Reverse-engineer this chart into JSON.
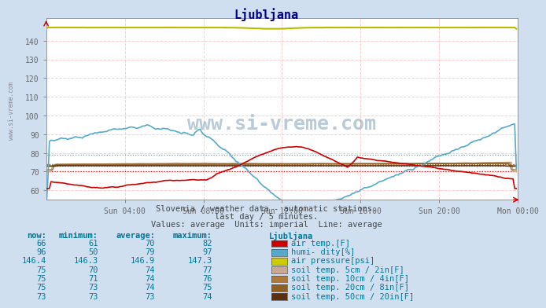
{
  "title": "Ljubljana",
  "background_color": "#d0dff0",
  "plot_bg_color": "#ffffff",
  "grid_color_h": "#ffbbbb",
  "grid_color_v": "#ffcccc",
  "x_ticks_labels": [
    "Sun 04:00",
    "Sun 08:00",
    "Sun 12:00",
    "Sun 16:00",
    "Sun 20:00",
    "Mon 00:00"
  ],
  "x_ticks_pos": [
    48,
    96,
    144,
    192,
    240,
    288
  ],
  "ylim": [
    55,
    152
  ],
  "yticks": [
    60,
    70,
    80,
    90,
    100,
    110,
    120,
    130,
    140
  ],
  "series": {
    "air_temp": {
      "color": "#cc0000",
      "avg": 70,
      "min": 61,
      "max": 82,
      "now": 66
    },
    "humidity": {
      "color": "#55aacc",
      "avg": 79,
      "min": 50,
      "max": 97,
      "now": 96
    },
    "air_pressure": {
      "color": "#bbbb00",
      "avg": 146.9,
      "min": 146.3,
      "max": 147.3,
      "now": 146.4
    },
    "soil_5cm": {
      "color": "#c8a890",
      "avg": 74,
      "min": 70,
      "max": 77,
      "now": 75
    },
    "soil_10cm": {
      "color": "#b07838",
      "avg": 74,
      "min": 71,
      "max": 76,
      "now": 75
    },
    "soil_20cm": {
      "color": "#906020",
      "avg": 74,
      "min": 73,
      "max": 75,
      "now": 75
    },
    "soil_50cm": {
      "color": "#5a3010",
      "avg": 73,
      "min": 73,
      "max": 74,
      "now": 73
    }
  },
  "subtitle1": "Slovenia / weather data - automatic stations.",
  "subtitle2": "last day / 5 minutes.",
  "subtitle3": "Values: average  Units: imperial  Line: average",
  "table_headers": [
    "now:",
    "minimum:",
    "average:",
    "maximum:",
    "Ljubljana"
  ],
  "table_rows": [
    [
      "66",
      "61",
      "70",
      "82",
      "#cc0000",
      "air temp.[F]"
    ],
    [
      "96",
      "50",
      "79",
      "97",
      "#55aacc",
      "humi- dity[%]"
    ],
    [
      "146.4",
      "146.3",
      "146.9",
      "147.3",
      "#cccc00",
      "air pressure[psi]"
    ],
    [
      "75",
      "70",
      "74",
      "77",
      "#c8a890",
      "soil temp. 5cm / 2in[F]"
    ],
    [
      "75",
      "71",
      "74",
      "76",
      "#b07838",
      "soil temp. 10cm / 4in[F]"
    ],
    [
      "75",
      "73",
      "74",
      "75",
      "#906020",
      "soil temp. 20cm / 8in[F]"
    ],
    [
      "73",
      "73",
      "73",
      "74",
      "#5a3010",
      "soil temp. 50cm / 20in[F]"
    ]
  ],
  "watermark": "www.si-vreme.com",
  "x_total_points": 288
}
